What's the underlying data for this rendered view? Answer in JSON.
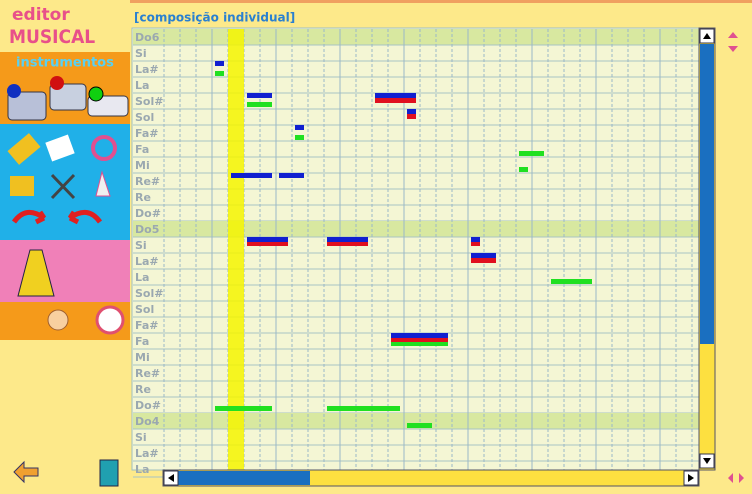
{
  "sidebar": {
    "logo_top": "editor",
    "logo_bottom": "MUSICAL",
    "section": "instrumentos"
  },
  "header": {
    "title": "[composição individual]"
  },
  "piano_roll": {
    "rows": [
      "Do6",
      "Si",
      "La#",
      "La",
      "Sol#",
      "Sol",
      "Fa#",
      "Fa",
      "Mi",
      "Re#",
      "Re",
      "Do#",
      "Do5",
      "Si",
      "La#",
      "La",
      "Sol#",
      "Sol",
      "Fa#",
      "Fa",
      "Mi",
      "Re#",
      "Re",
      "Do#",
      "Do4",
      "Si",
      "La#",
      "La"
    ]
  }
}
